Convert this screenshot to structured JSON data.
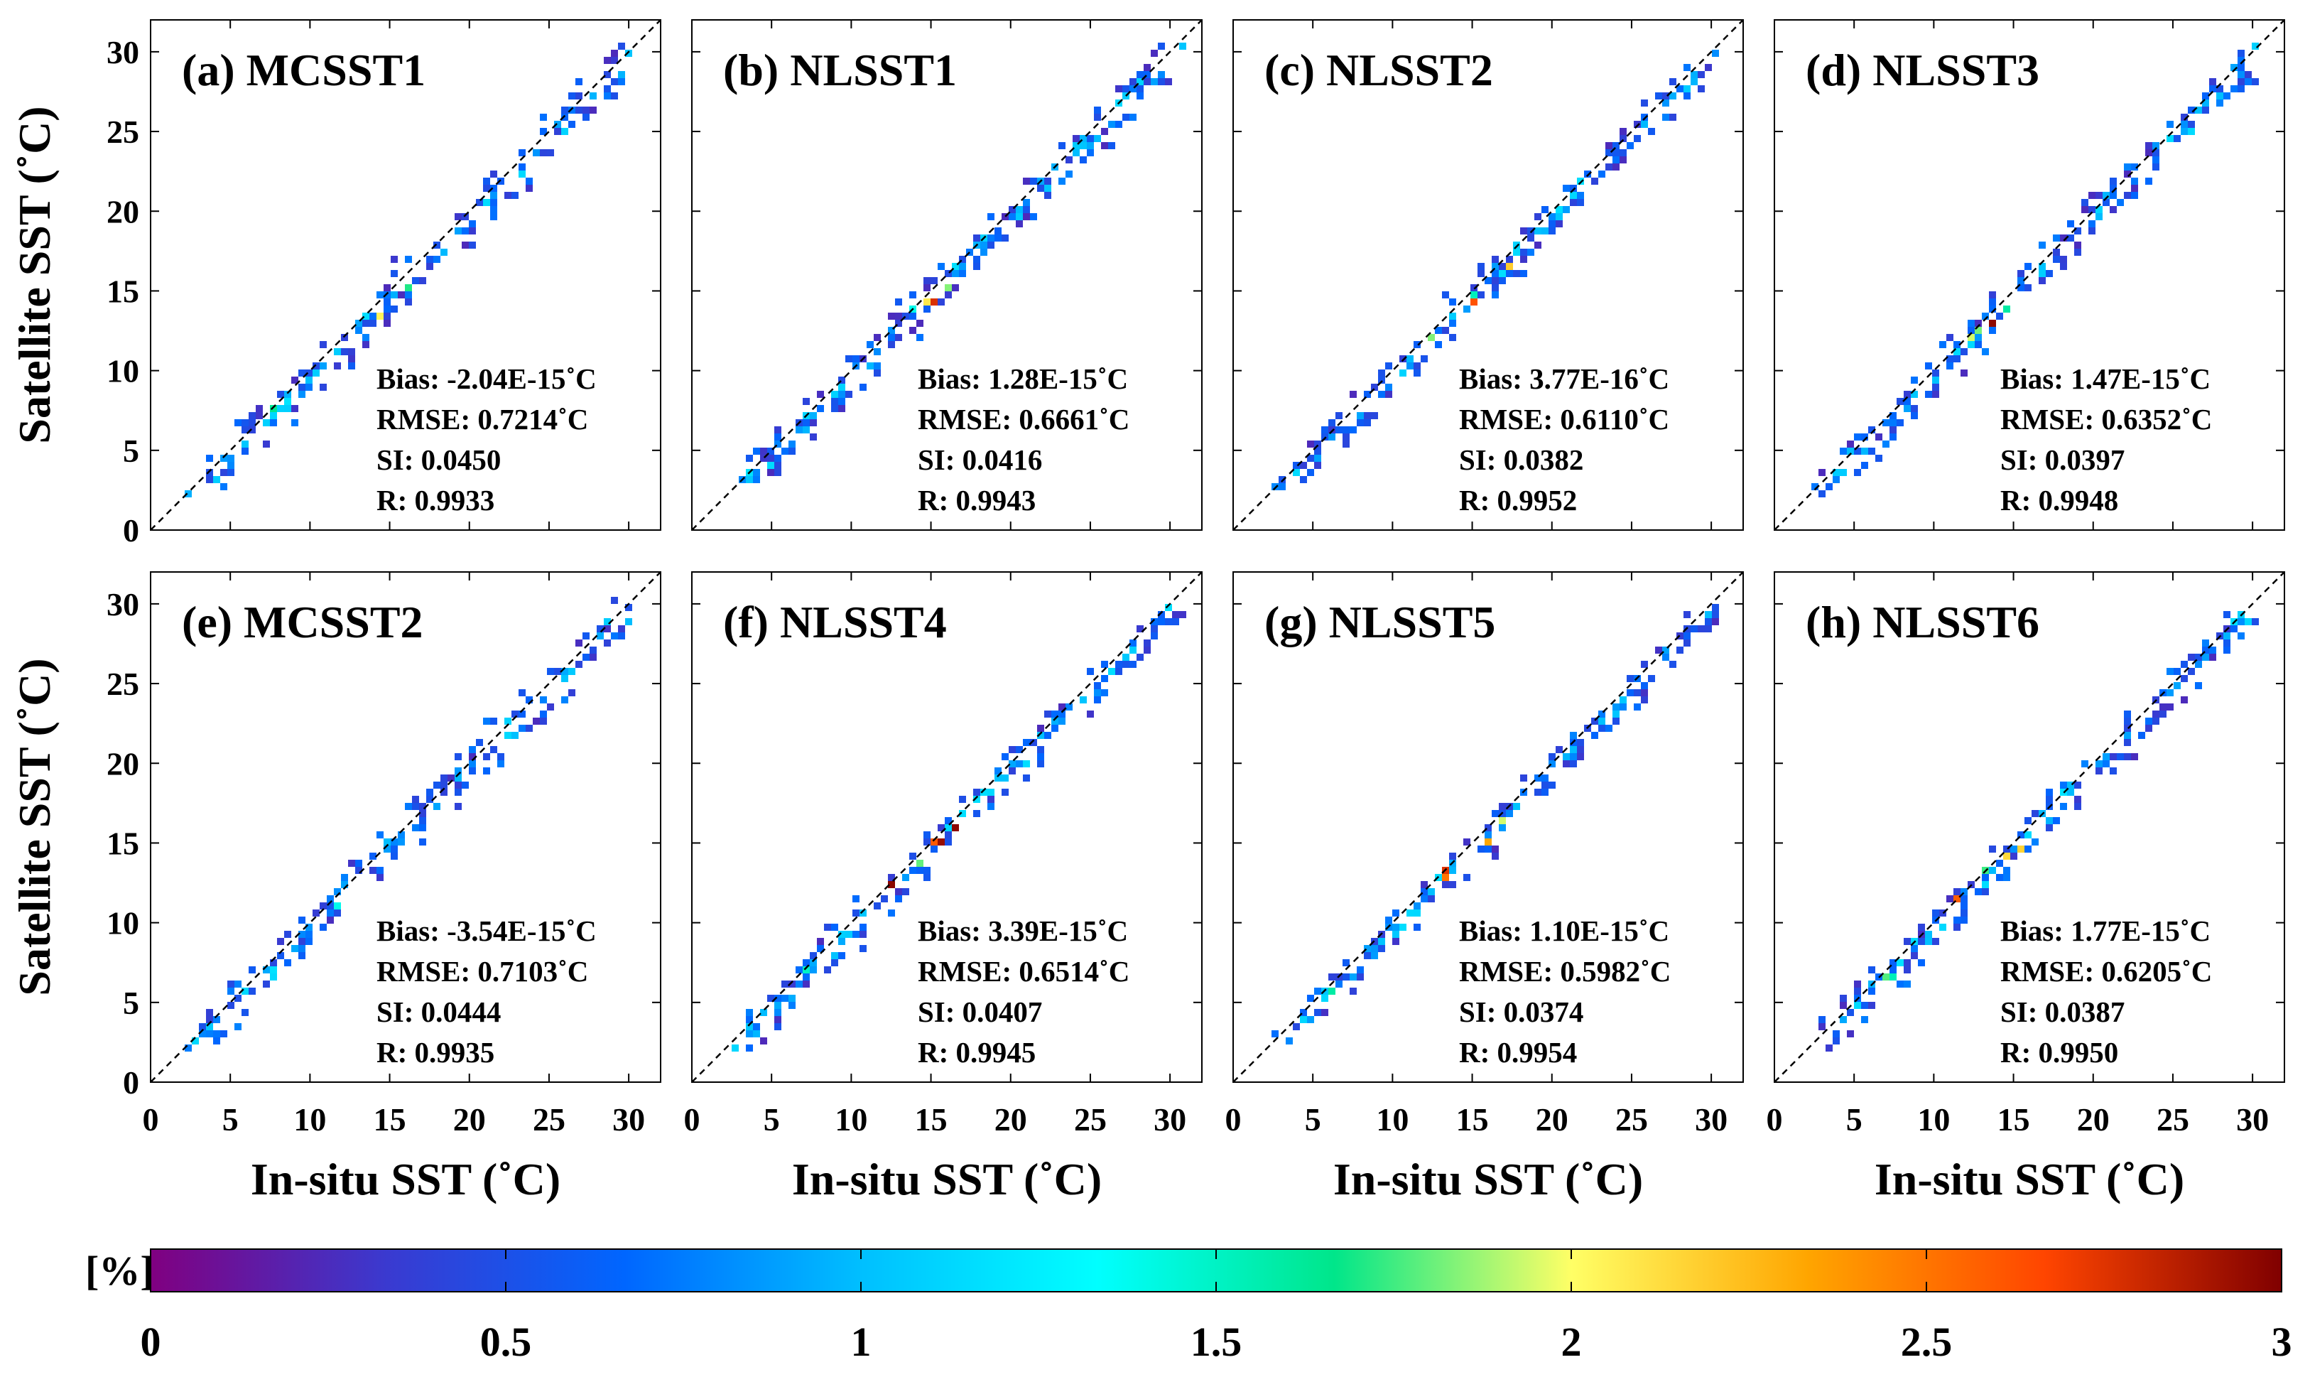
{
  "chart_data": {
    "type": "heatmap",
    "description_kind": "2D density scatter (satellite vs in-situ SST) with 1:1 line",
    "shared": {
      "xlabel": "In-situ SST (˚C)",
      "ylabel": "Satellite SST (˚C)",
      "xlim": [
        0,
        32
      ],
      "ylim": [
        0,
        32
      ],
      "xticks": [
        0,
        5,
        10,
        15,
        20,
        25,
        30
      ],
      "yticks": [
        0,
        5,
        10,
        15,
        20,
        25,
        30
      ],
      "reference_line": "1:1 dashed"
    },
    "panels": [
      {
        "title": "(a) MCSST1",
        "stats": [
          "Bias: -2.04E-15˚C",
          "RMSE: 0.7214˚C",
          "SI: 0.0450",
          "R: 0.9933"
        ],
        "spread": 0.8
      },
      {
        "title": "(b) NLSST1",
        "stats": [
          "Bias: 1.28E-15˚C",
          "RMSE: 0.6661˚C",
          "SI: 0.0416",
          "R: 0.9943"
        ],
        "spread": 0.72
      },
      {
        "title": "(c) NLSST2",
        "stats": [
          "Bias: 3.77E-16˚C",
          "RMSE: 0.6110˚C",
          "SI: 0.0382",
          "R: 0.9952"
        ],
        "spread": 0.66
      },
      {
        "title": "(d) NLSST3",
        "stats": [
          "Bias: 1.47E-15˚C",
          "RMSE: 0.6352˚C",
          "SI: 0.0397",
          "R: 0.9948"
        ],
        "spread": 0.69
      },
      {
        "title": "(e) MCSST2",
        "stats": [
          "Bias: -3.54E-15˚C",
          "RMSE: 0.7103˚C",
          "SI: 0.0444",
          "R: 0.9935"
        ],
        "spread": 0.78
      },
      {
        "title": "(f) NLSST4",
        "stats": [
          "Bias: 3.39E-15˚C",
          "RMSE: 0.6514˚C",
          "SI: 0.0407",
          "R: 0.9945"
        ],
        "spread": 0.7
      },
      {
        "title": "(g) NLSST5",
        "stats": [
          "Bias: 1.10E-15˚C",
          "RMSE: 0.5982˚C",
          "SI: 0.0374",
          "R: 0.9954"
        ],
        "spread": 0.64
      },
      {
        "title": "(h) NLSST6",
        "stats": [
          "Bias: 1.77E-15˚C",
          "RMSE: 0.6205˚C",
          "SI: 0.0387",
          "R: 0.9950"
        ],
        "spread": 0.67
      }
    ],
    "colorbar": {
      "label": "[%]",
      "range": [
        0,
        3
      ],
      "ticks": [
        0,
        0.5,
        1,
        1.5,
        2,
        2.5,
        3
      ],
      "tick_labels": [
        "0",
        "0.5",
        "1",
        "1.5",
        "2",
        "2.5",
        "3"
      ],
      "colormap": [
        "#800080",
        "#3a3ad0",
        "#0066ff",
        "#00bfff",
        "#00ffff",
        "#00e68a",
        "#ffff66",
        "#ffa500",
        "#ff4500",
        "#800000"
      ]
    },
    "data_range": [
      3,
      30
    ]
  }
}
